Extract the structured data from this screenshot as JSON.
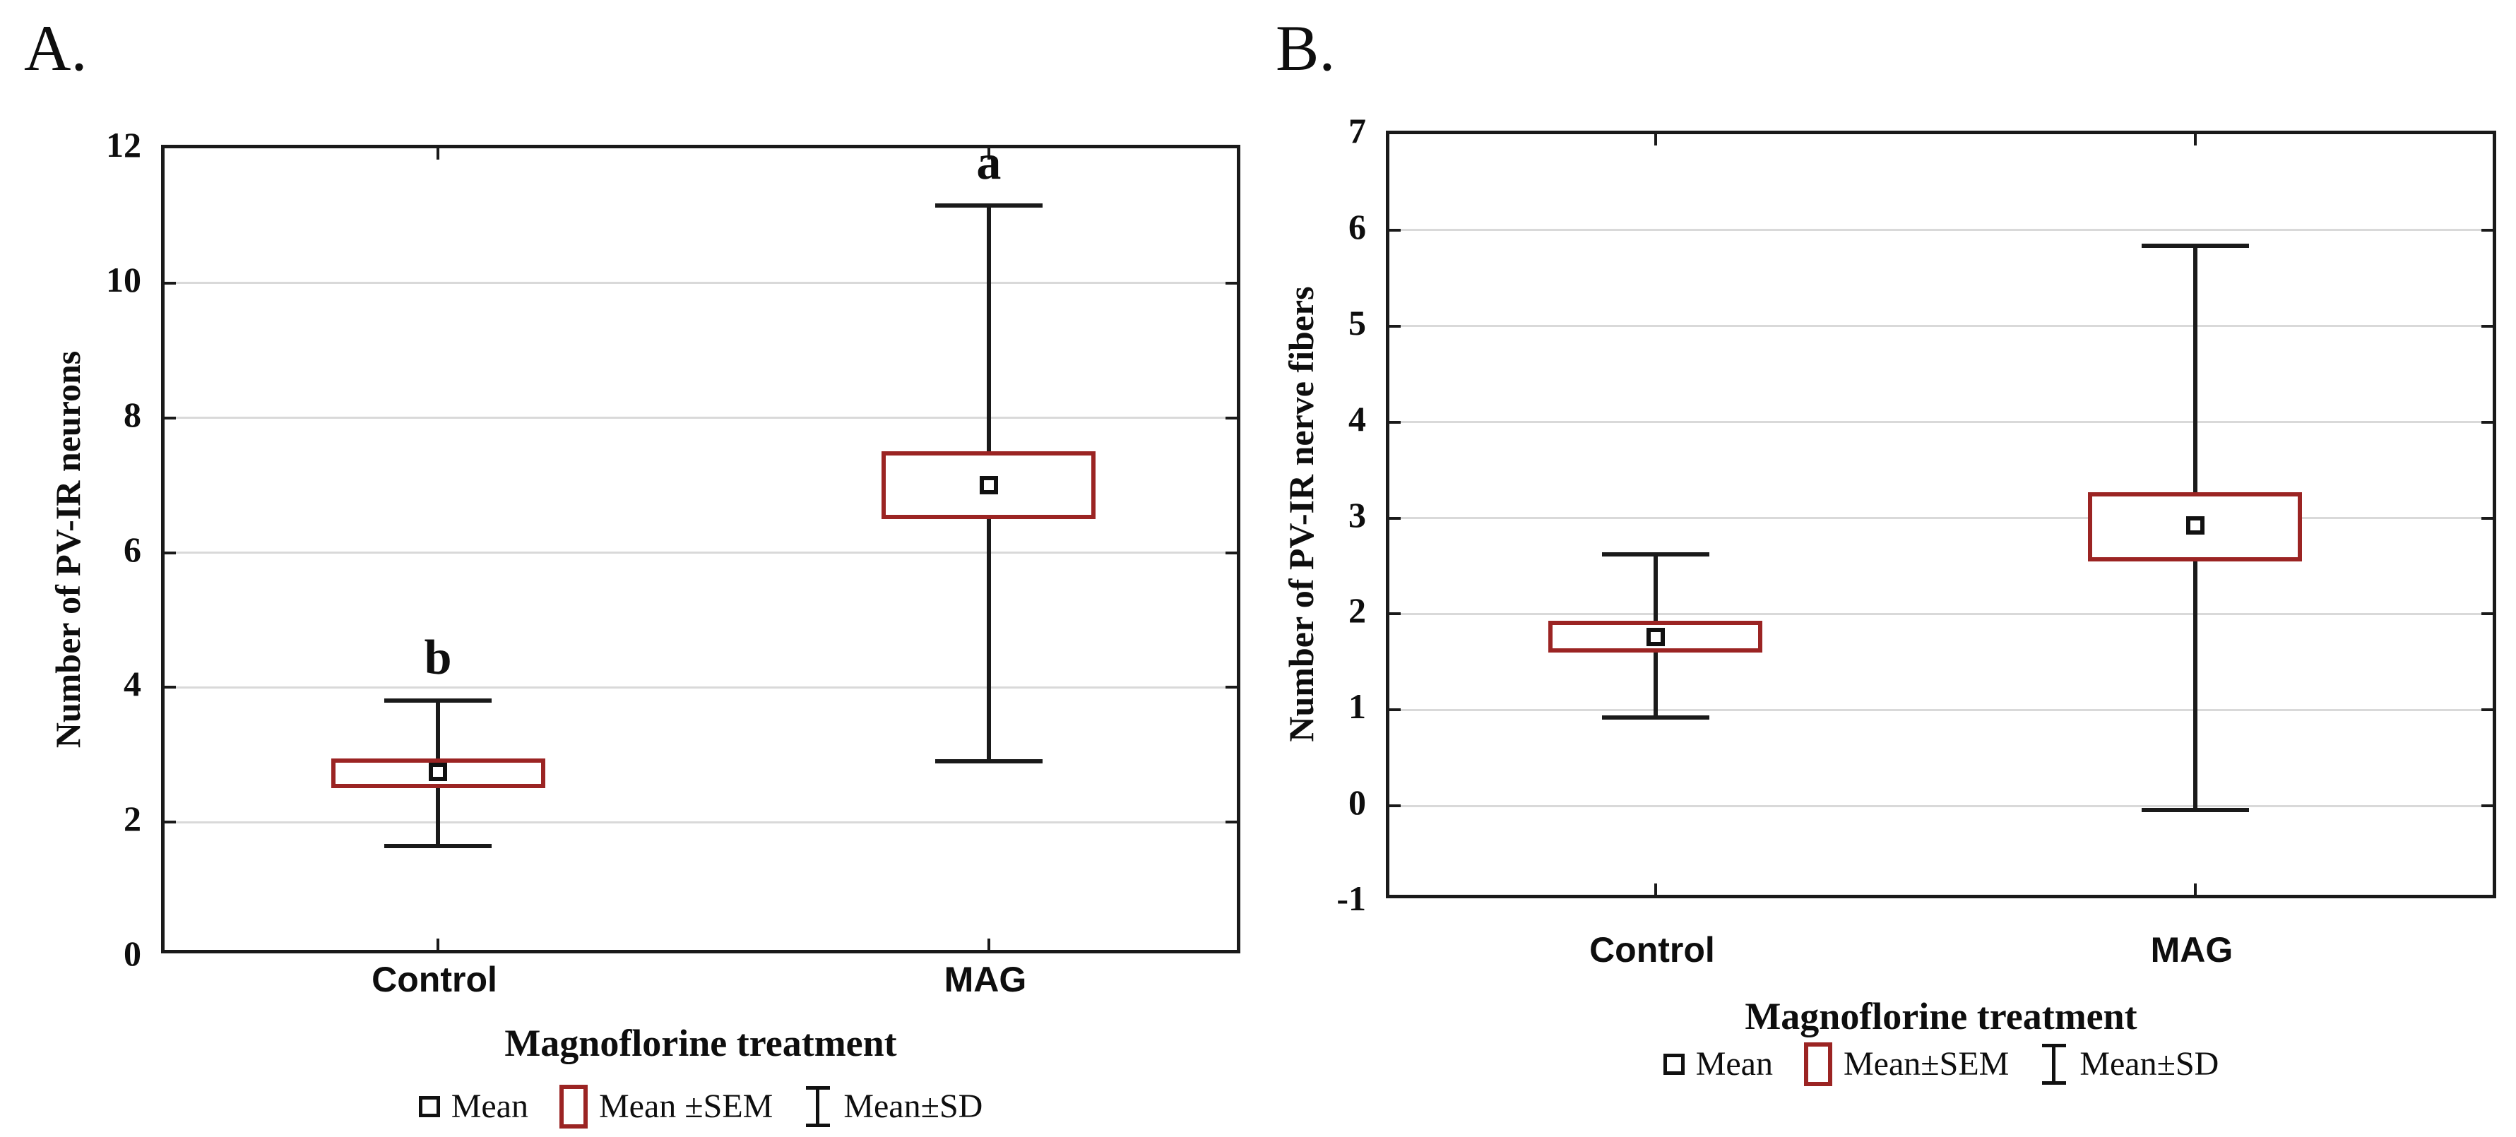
{
  "chart_data": [
    {
      "type": "boxplot",
      "panel_label": "A.",
      "title": "",
      "xlabel": "Magnoflorine treatment",
      "ylabel": "Number of PV-IR neurons",
      "categories": [
        "Control",
        "MAG"
      ],
      "ylim": [
        0,
        12
      ],
      "yticks": [
        0,
        2,
        4,
        6,
        8,
        10,
        12
      ],
      "grid": "horizontal gridlines at each y tick",
      "legend_position": "bottom-center",
      "legend": [
        {
          "symbol": "mean-square",
          "label": "Mean"
        },
        {
          "symbol": "sem-box",
          "label": "Mean ±SEM"
        },
        {
          "symbol": "sd-whisker",
          "label": "Mean±SD"
        }
      ],
      "series": [
        {
          "category": "Control",
          "mean": 2.75,
          "mean_minus_sem": 2.5,
          "mean_plus_sem": 2.95,
          "mean_minus_sd": 1.65,
          "mean_plus_sd": 3.8,
          "annotation": "b"
        },
        {
          "category": "MAG",
          "mean": 7.0,
          "mean_minus_sem": 6.5,
          "mean_plus_sem": 7.5,
          "mean_minus_sd": 2.9,
          "mean_plus_sd": 11.15,
          "annotation": "a"
        }
      ],
      "colors": {
        "sem_box_border": "#9b2423",
        "whisker": "#1a1a1a",
        "mean_marker_border": "#111111",
        "gridline": "#d9d9d9",
        "axis": "#1a1a1a"
      }
    },
    {
      "type": "boxplot",
      "panel_label": "B.",
      "title": "",
      "xlabel": "Magnoflorine treatment",
      "ylabel": "Number of PV-IR nerve fibers",
      "categories": [
        "Control",
        "MAG"
      ],
      "ylim": [
        -1,
        7
      ],
      "yticks": [
        -1,
        0,
        1,
        2,
        3,
        4,
        5,
        6,
        7
      ],
      "grid": "horizontal gridlines at each y tick",
      "legend_position": "bottom-center",
      "legend": [
        {
          "symbol": "mean-square",
          "label": "Mean"
        },
        {
          "symbol": "sem-box",
          "label": "Mean±SEM"
        },
        {
          "symbol": "sd-whisker",
          "label": "Mean±SD"
        }
      ],
      "series": [
        {
          "category": "Control",
          "mean": 1.76,
          "mean_minus_sem": 1.6,
          "mean_plus_sem": 1.93,
          "mean_minus_sd": 0.92,
          "mean_plus_sd": 2.62,
          "annotation": ""
        },
        {
          "category": "MAG",
          "mean": 2.92,
          "mean_minus_sem": 2.55,
          "mean_plus_sem": 3.27,
          "mean_minus_sd": -0.04,
          "mean_plus_sd": 5.84,
          "annotation": ""
        }
      ],
      "colors": {
        "sem_box_border": "#9b2423",
        "whisker": "#1a1a1a",
        "mean_marker_border": "#111111",
        "gridline": "#d9d9d9",
        "axis": "#1a1a1a"
      }
    }
  ]
}
